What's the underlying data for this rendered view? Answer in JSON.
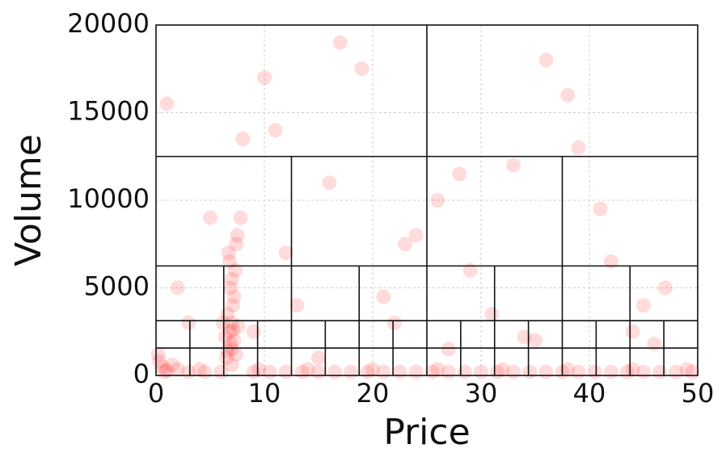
{
  "chart_data": {
    "type": "scatter",
    "xlabel": "Price",
    "ylabel": "Volume",
    "xlim": [
      0,
      50
    ],
    "ylim": [
      0,
      20000
    ],
    "xticks": [
      0,
      10,
      20,
      30,
      40,
      50
    ],
    "yticks": [
      0,
      5000,
      10000,
      15000,
      20000
    ],
    "grid": true,
    "color": "#ff0000",
    "alpha": 0.14,
    "x": [
      0.3,
      0.6,
      1,
      0.2,
      1.5,
      0.8,
      2,
      6.5,
      7,
      7.2,
      6.8,
      7,
      6.6,
      7.1,
      6.9,
      7.3,
      6.7,
      7.5,
      7.8,
      6.9,
      7.4,
      6.4,
      7,
      7.6,
      6.2,
      7.2,
      7,
      6.8,
      7.4,
      7.1,
      6.6,
      3,
      4.5,
      6,
      9,
      10.5,
      12,
      13.5,
      15,
      16.5,
      18,
      19.5,
      21,
      22.5,
      24,
      25.5,
      27,
      28.5,
      30,
      31.5,
      33,
      34.5,
      36,
      37.5,
      39,
      40.5,
      42,
      43.5,
      45,
      46.5,
      48,
      49.5,
      4,
      9.5,
      14,
      20,
      26,
      32,
      38,
      44,
      49,
      2,
      5,
      9,
      11,
      13,
      16,
      19,
      22,
      24,
      27,
      29,
      33,
      35,
      38,
      41,
      44,
      47,
      3,
      8,
      12,
      17,
      21,
      26,
      31,
      36,
      42,
      46,
      1,
      10,
      15,
      23,
      28,
      34,
      39,
      45
    ],
    "y": [
      800,
      500,
      300,
      1200,
      600,
      200,
      350,
      1000,
      1500,
      2000,
      2500,
      3000,
      3500,
      4000,
      5000,
      6000,
      7000,
      8000,
      9000,
      1800,
      1200,
      2200,
      600,
      2800,
      3000,
      4500,
      5500,
      6500,
      7500,
      2600,
      1400,
      200,
      200,
      200,
      200,
      200,
      200,
      200,
      200,
      200,
      200,
      200,
      200,
      200,
      200,
      200,
      200,
      200,
      200,
      200,
      200,
      200,
      200,
      200,
      200,
      200,
      200,
      200,
      200,
      200,
      200,
      200,
      350,
      350,
      350,
      350,
      350,
      350,
      350,
      350,
      350,
      5000,
      9000,
      2500,
      14000,
      4000,
      11000,
      17500,
      3000,
      8000,
      1500,
      6000,
      12000,
      2000,
      16000,
      9500,
      2500,
      5000,
      3000,
      13500,
      7000,
      19000,
      4500,
      10000,
      3500,
      18000,
      6500,
      1800,
      15500,
      17000,
      1000,
      7500,
      11500,
      2200,
      13000,
      4000
    ],
    "partitions": [
      [
        25,
        0,
        25,
        20000
      ],
      [
        12.5,
        0,
        12.5,
        12500
      ],
      [
        37.5,
        0,
        37.5,
        12500
      ],
      [
        6.25,
        0,
        6.25,
        6250
      ],
      [
        18.75,
        0,
        18.75,
        6250
      ],
      [
        31.25,
        0,
        31.25,
        6250
      ],
      [
        43.75,
        0,
        43.75,
        6250
      ],
      [
        3.125,
        0,
        3.125,
        3125
      ],
      [
        9.375,
        0,
        9.375,
        3125
      ],
      [
        15.625,
        0,
        15.625,
        3125
      ],
      [
        21.875,
        0,
        21.875,
        3125
      ],
      [
        28.125,
        0,
        28.125,
        3125
      ],
      [
        34.375,
        0,
        34.375,
        3125
      ],
      [
        40.625,
        0,
        40.625,
        3125
      ],
      [
        46.875,
        0,
        46.875,
        3125
      ],
      [
        0,
        12500,
        50,
        12500
      ],
      [
        0,
        6250,
        50,
        6250
      ],
      [
        0,
        3125,
        50,
        3125
      ],
      [
        0,
        1562.5,
        50,
        1562.5
      ]
    ]
  }
}
